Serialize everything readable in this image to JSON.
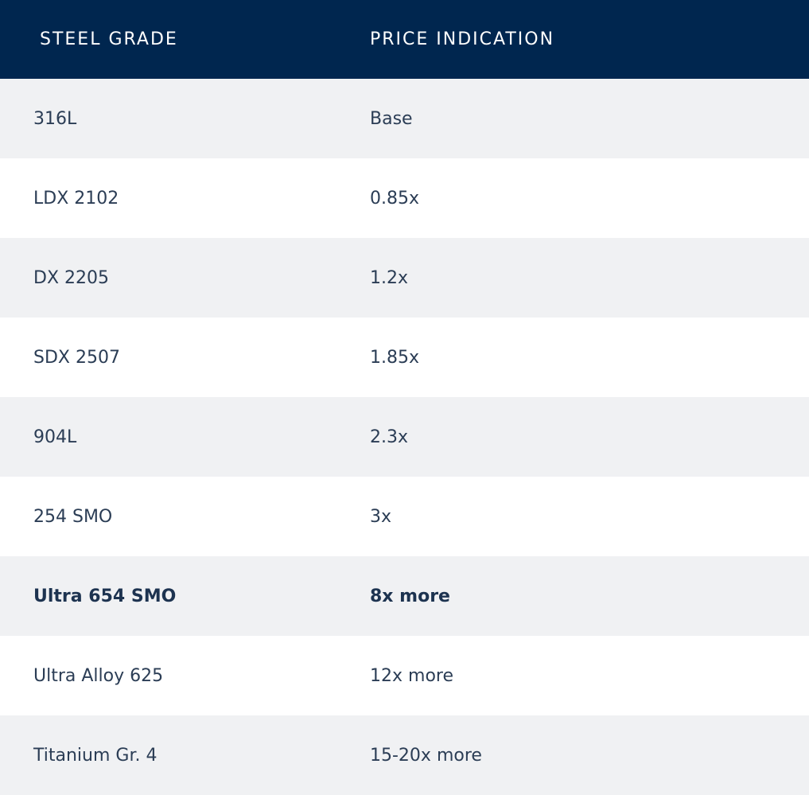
{
  "table": {
    "header": [
      "STEEL GRADE",
      "PRICE INDICATION"
    ],
    "rows": [
      [
        "316L",
        "Base"
      ],
      [
        "LDX 2102",
        "0.85x"
      ],
      [
        "DX 2205",
        "1.2x"
      ],
      [
        "SDX 2507",
        "1.85x"
      ],
      [
        "904L",
        "2.3x"
      ],
      [
        "254 SMO",
        "3x"
      ],
      [
        "Ultra 654 SMO",
        "8x more"
      ],
      [
        "Ultra Alloy 625",
        "12x more"
      ],
      [
        "Titanium Gr. 4",
        "15-20x more"
      ]
    ],
    "highlight_row": 6
  }
}
